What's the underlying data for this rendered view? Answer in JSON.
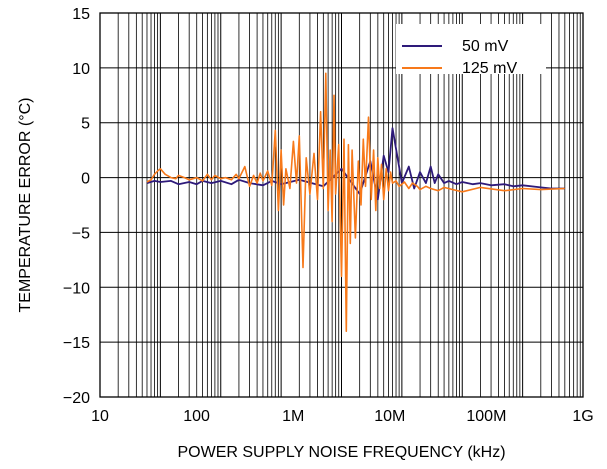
{
  "chart_data": {
    "type": "line",
    "title": "",
    "xlabel": "POWER SUPPLY NOISE FREQUENCY (kHz)",
    "ylabel": "TEMPERATURE ERROR (°C)",
    "xscale": "log",
    "xlim": [
      10,
      1000000000
    ],
    "ylim": [
      -20,
      15
    ],
    "grid": true,
    "legend_position": "top-right",
    "x_tick_labels": [
      "10",
      "100",
      "1M",
      "10M",
      "100M",
      "1G"
    ],
    "y_tick_labels": [
      "15",
      "10",
      "5",
      "0",
      "−5",
      "−10",
      "−15",
      "−20"
    ],
    "series": [
      {
        "name": "50 mV",
        "color": "#2e1a7a",
        "x": [
          60,
          80,
          100,
          150,
          200,
          300,
          400,
          500,
          700,
          1000,
          1500,
          2000,
          3000,
          5000,
          7000,
          10000,
          20000,
          50000,
          100000,
          200000,
          300000,
          400000,
          500000,
          600000,
          700000,
          1000000,
          1300000,
          1600000,
          2000000,
          2500000,
          3000000,
          3500000,
          4000000,
          5000000,
          6000000,
          8000000,
          10000000,
          15000000,
          20000000,
          30000000,
          50000000,
          70000000,
          100000000,
          200000000,
          300000000,
          500000000
        ],
        "y": [
          -0.5,
          -0.3,
          -0.4,
          -0.3,
          -0.6,
          -0.4,
          -0.6,
          -0.3,
          -0.5,
          -0.3,
          -0.6,
          -0.2,
          -0.5,
          -0.7,
          -0.3,
          -0.6,
          -0.2,
          -0.8,
          0.8,
          -1.5,
          1.5,
          -2.0,
          2.0,
          0.5,
          4.5,
          -0.5,
          1.0,
          -1.0,
          0.5,
          -0.5,
          1.0,
          -0.5,
          0.3,
          -0.5,
          -0.3,
          -0.6,
          -0.4,
          -0.6,
          -0.5,
          -0.7,
          -0.6,
          -0.8,
          -0.7,
          -0.9,
          -1.0,
          -1.0
        ]
      },
      {
        "name": "125 mV",
        "color": "#f7791a",
        "x": [
          60,
          70,
          80,
          90,
          100,
          120,
          150,
          180,
          200,
          250,
          300,
          400,
          500,
          600,
          700,
          800,
          1000,
          1200,
          1500,
          1800,
          2000,
          2500,
          3000,
          3500,
          4000,
          4500,
          5000,
          6000,
          7000,
          8000,
          9000,
          10000,
          11000,
          12000,
          14000,
          16000,
          18000,
          20000,
          23000,
          26000,
          30000,
          35000,
          40000,
          45000,
          50000,
          55000,
          60000,
          65000,
          70000,
          75000,
          80000,
          90000,
          100000,
          110000,
          120000,
          130000,
          140000,
          150000,
          170000,
          190000,
          210000,
          230000,
          250000,
          280000,
          310000,
          340000,
          370000,
          400000,
          430000,
          460000,
          500000,
          550000,
          600000,
          650000,
          700000,
          800000,
          900000,
          1000000,
          1100000,
          1300000,
          1500000,
          1800000,
          2000000,
          2500000,
          3000000,
          4000000,
          5000000,
          7000000,
          10000000,
          20000000,
          50000000,
          100000000,
          200000000,
          500000000
        ],
        "y": [
          -0.4,
          -0.2,
          0.3,
          0.6,
          0.8,
          0.3,
          0.0,
          -0.1,
          0.2,
          0.0,
          -0.2,
          0.0,
          -0.3,
          0.3,
          -0.2,
          0.2,
          -0.1,
          0.0,
          -0.2,
          0.3,
          -0.1,
          1.0,
          -0.8,
          0.2,
          -0.5,
          0.4,
          -0.3,
          0.6,
          -0.7,
          4.3,
          -3.0,
          2.5,
          -2.5,
          0.8,
          -1.0,
          3.3,
          -0.5,
          3.8,
          -8.2,
          1.8,
          -1.5,
          2.2,
          -2.0,
          6.0,
          -1.0,
          9.5,
          -3.0,
          2.5,
          -4.0,
          7.5,
          -1.5,
          3.0,
          -9.0,
          3.5,
          -14.0,
          3.0,
          -6.0,
          2.5,
          -5.5,
          1.5,
          -2.5,
          3.5,
          -0.8,
          5.5,
          -2.0,
          2.5,
          -3.0,
          1.8,
          -1.0,
          1.2,
          -2.0,
          0.8,
          -1.2,
          0.5,
          -0.5,
          -0.3,
          -0.8,
          -0.6,
          -0.4,
          -1.0,
          -0.5,
          -0.8,
          -1.1,
          -0.8,
          -1.0,
          -1.2,
          -0.9,
          -1.1,
          -1.3,
          -0.9,
          -1.2,
          -1.0,
          -1.1,
          -1.0
        ]
      }
    ]
  }
}
